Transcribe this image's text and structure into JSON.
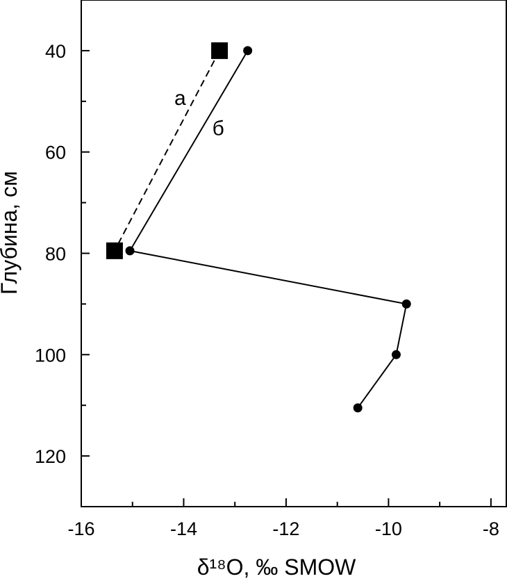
{
  "chart_data": {
    "type": "line",
    "xlabel": "δ¹⁸O, ‰ SMOW",
    "ylabel": "Глубина, см",
    "xlim": [
      -16,
      -7.7
    ],
    "ylim": [
      30,
      130
    ],
    "y_inverted": true,
    "grid": false,
    "x_ticks": [
      -16,
      -14,
      -12,
      -10,
      -8
    ],
    "x_tick_labels": [
      "-16",
      "-14",
      "-12",
      "-10",
      "-8"
    ],
    "y_ticks": [
      40,
      60,
      80,
      100,
      120
    ],
    "y_tick_labels": [
      "40",
      "60",
      "80",
      "100",
      "120"
    ],
    "series": [
      {
        "name": "а",
        "marker": "square",
        "line_style": "dashed",
        "color": "#000000",
        "points": [
          {
            "x": -13.3,
            "y": 40
          },
          {
            "x": -15.35,
            "y": 79.5
          }
        ]
      },
      {
        "name": "б",
        "marker": "circle",
        "line_style": "solid",
        "color": "#000000",
        "points": [
          {
            "x": -12.75,
            "y": 40
          },
          {
            "x": -15.05,
            "y": 79.5
          },
          {
            "x": -9.65,
            "y": 90
          },
          {
            "x": -9.85,
            "y": 100
          },
          {
            "x": -10.6,
            "y": 110.5
          }
        ]
      }
    ]
  }
}
